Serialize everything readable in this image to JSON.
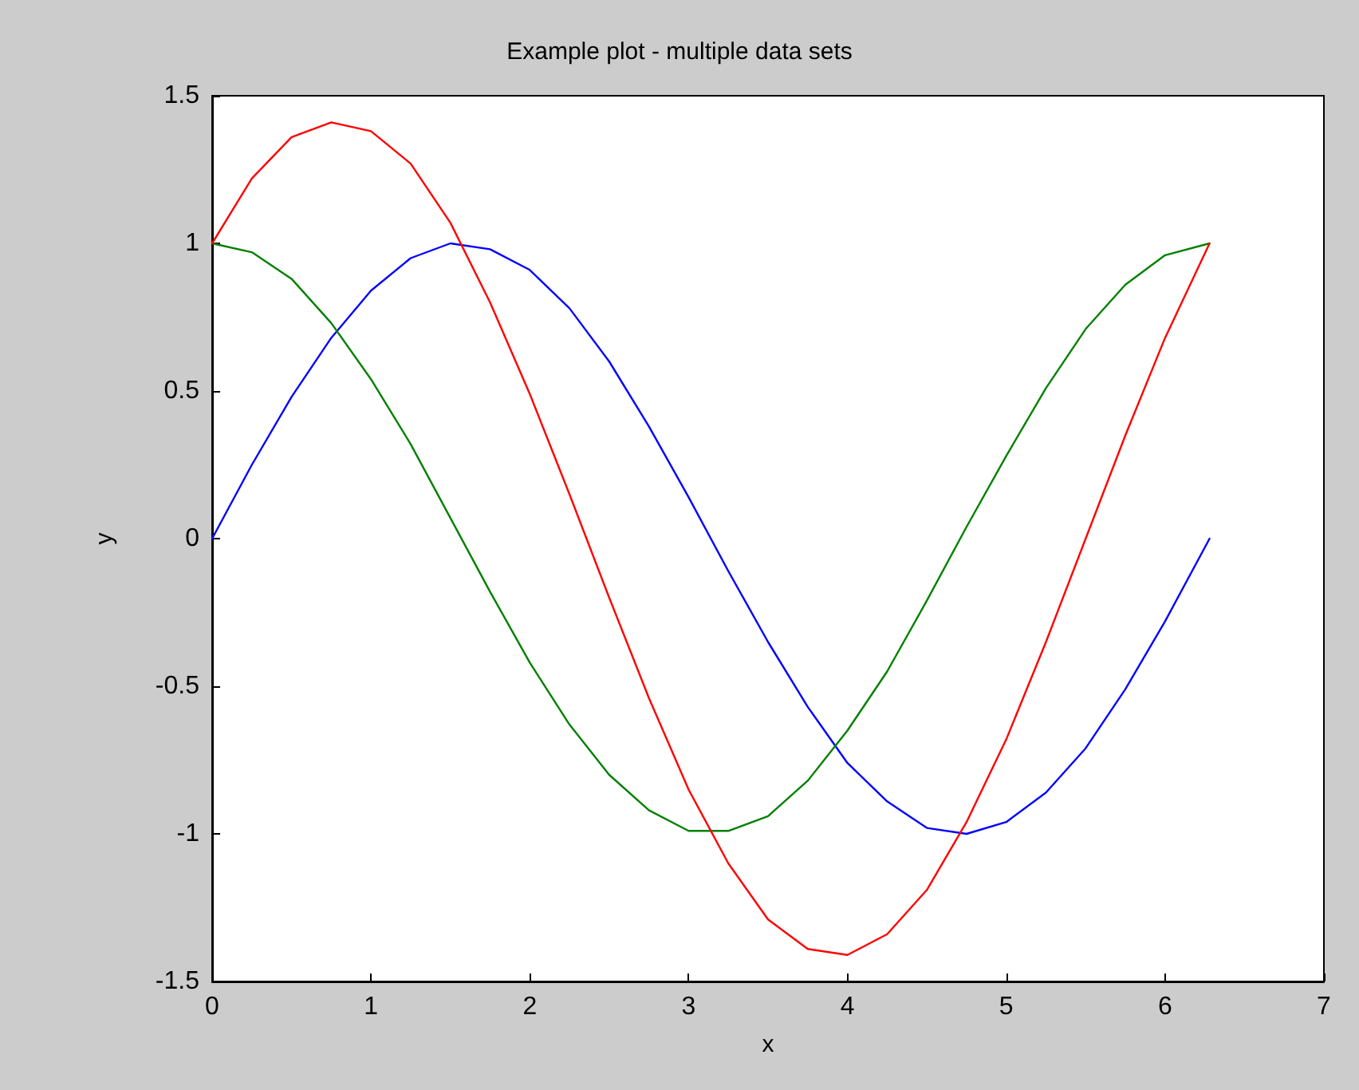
{
  "chart_data": {
    "type": "line",
    "title": "Example plot - multiple data sets",
    "xlabel": "x",
    "ylabel": "y",
    "x": [
      0,
      0.25,
      0.5,
      0.75,
      1,
      1.25,
      1.5,
      1.75,
      2,
      2.25,
      2.5,
      2.75,
      3,
      3.25,
      3.5,
      3.75,
      4,
      4.25,
      4.5,
      4.75,
      5,
      5.25,
      5.5,
      5.75,
      6,
      6.28
    ],
    "series": [
      {
        "color": "#0000ff",
        "values": [
          0,
          0.25,
          0.48,
          0.68,
          0.84,
          0.95,
          1.0,
          0.98,
          0.91,
          0.78,
          0.6,
          0.38,
          0.14,
          -0.11,
          -0.35,
          -0.57,
          -0.76,
          -0.89,
          -0.98,
          -1.0,
          -0.96,
          -0.86,
          -0.71,
          -0.51,
          -0.28,
          0
        ]
      },
      {
        "color": "#008000",
        "values": [
          1,
          0.97,
          0.88,
          0.73,
          0.54,
          0.32,
          0.07,
          -0.18,
          -0.42,
          -0.63,
          -0.8,
          -0.92,
          -0.99,
          -0.99,
          -0.94,
          -0.82,
          -0.65,
          -0.45,
          -0.21,
          0.04,
          0.28,
          0.51,
          0.71,
          0.86,
          0.96,
          1
        ]
      },
      {
        "color": "#ff0000",
        "values": [
          1,
          1.22,
          1.36,
          1.41,
          1.38,
          1.27,
          1.07,
          0.8,
          0.49,
          0.15,
          -0.2,
          -0.54,
          -0.85,
          -1.1,
          -1.29,
          -1.39,
          -1.41,
          -1.34,
          -1.19,
          -0.96,
          -0.68,
          -0.35,
          0,
          0.35,
          0.68,
          1
        ]
      }
    ],
    "xlim": [
      0,
      7
    ],
    "xticks": [
      0,
      1,
      2,
      3,
      4,
      5,
      6,
      7
    ],
    "ylim": [
      -1.5,
      1.5
    ],
    "yticks": [
      -1.5,
      -1,
      -0.5,
      0,
      0.5,
      1,
      1.5
    ],
    "grid": false,
    "marker": "none",
    "line_style": "solid"
  }
}
